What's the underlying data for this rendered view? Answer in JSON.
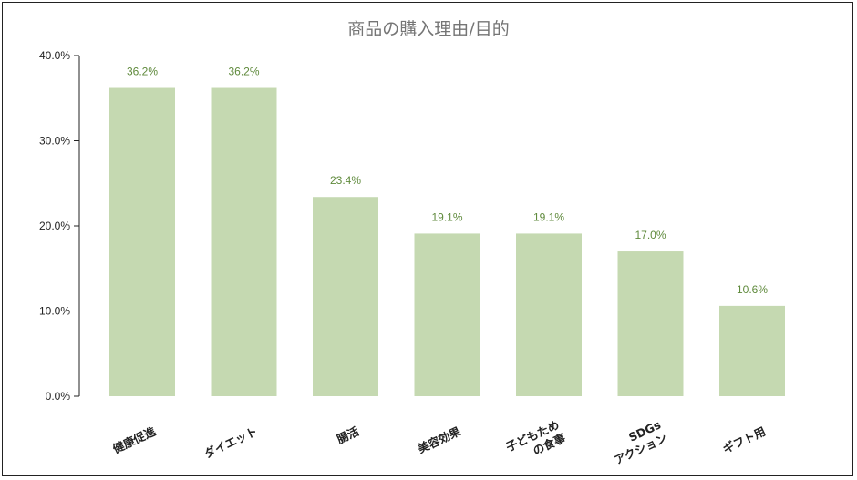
{
  "chart_data": {
    "type": "bar",
    "title": "商品の購入理由/目的",
    "xlabel": "",
    "ylabel": "",
    "categories": [
      [
        "健康促進"
      ],
      [
        "ダイエット"
      ],
      [
        "腸活"
      ],
      [
        "美容効果"
      ],
      [
        "子どもため",
        "の食事"
      ],
      [
        "SDGs",
        "アクション"
      ],
      [
        "ギフト用"
      ]
    ],
    "values": [
      36.2,
      36.2,
      23.4,
      19.1,
      19.1,
      17.0,
      10.6
    ],
    "data_labels": [
      "36.2%",
      "36.2%",
      "23.4%",
      "19.1%",
      "19.1%",
      "17.0%",
      "10.6%"
    ],
    "ylim": [
      0,
      40
    ],
    "yticks": [
      0,
      10,
      20,
      30,
      40
    ],
    "ytick_labels": [
      "0.0%",
      "10.0%",
      "20.0%",
      "30.0%",
      "40.0%"
    ],
    "grid": false,
    "legend": "none",
    "colors": {
      "bar": "#c5d9b1",
      "data_label": "#5f8a3c",
      "axis": "#222222",
      "title": "#757575"
    }
  }
}
